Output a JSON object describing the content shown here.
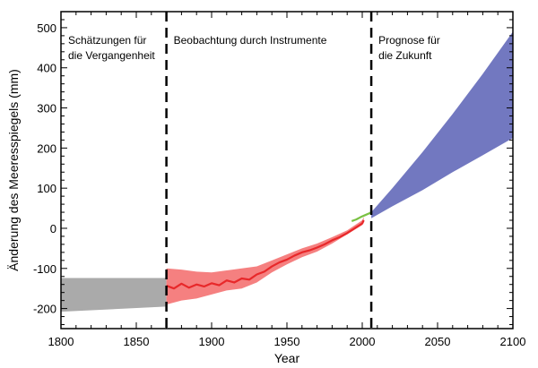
{
  "chart_data": {
    "type": "area",
    "title": "",
    "xlabel": "Year",
    "ylabel": "Änderung des Meeresspiegels (mm)",
    "xlim": [
      1800,
      2100
    ],
    "ylim": [
      -250,
      540
    ],
    "xticks": [
      1800,
      1850,
      1900,
      1950,
      2000,
      2050,
      2100
    ],
    "yticks": [
      -200,
      -100,
      0,
      100,
      200,
      300,
      400,
      500
    ],
    "grid": false,
    "legend": "none",
    "dividers": [
      1870,
      2006
    ],
    "region_labels": [
      {
        "lines": [
          "Schätzungen für",
          "die Vergangenheit"
        ]
      },
      {
        "lines": [
          "Beobachtung durch Instrumente"
        ]
      },
      {
        "lines": [
          "Prognose für",
          "die Zukunft"
        ]
      }
    ],
    "series": [
      {
        "kind": "band",
        "color": "#aaaaaa",
        "x": [
          1800,
          1870
        ],
        "upper": [
          -124,
          -124
        ],
        "lower": [
          -208,
          -195
        ]
      },
      {
        "kind": "band",
        "color": "#f58080",
        "x": [
          1870,
          1880,
          1890,
          1900,
          1910,
          1920,
          1930,
          1940,
          1950,
          1960,
          1970,
          1980,
          1990,
          2000,
          2001
        ],
        "upper": [
          -100,
          -103,
          -108,
          -110,
          -105,
          -100,
          -95,
          -80,
          -65,
          -50,
          -38,
          -22,
          -5,
          20,
          28
        ],
        "lower": [
          -190,
          -180,
          -175,
          -165,
          -155,
          -150,
          -135,
          -110,
          -90,
          -72,
          -58,
          -38,
          -15,
          8,
          15
        ]
      },
      {
        "kind": "line",
        "color": "#e8282a",
        "x": [
          1870,
          1875,
          1880,
          1885,
          1890,
          1895,
          1900,
          1905,
          1910,
          1915,
          1920,
          1925,
          1930,
          1935,
          1940,
          1945,
          1950,
          1955,
          1960,
          1965,
          1970,
          1975,
          1980,
          1985,
          1990,
          1995,
          2000,
          2001
        ],
        "y": [
          -143,
          -150,
          -138,
          -148,
          -140,
          -145,
          -137,
          -142,
          -130,
          -135,
          -125,
          -128,
          -115,
          -108,
          -95,
          -85,
          -78,
          -68,
          -60,
          -55,
          -48,
          -40,
          -30,
          -22,
          -12,
          0,
          12,
          20
        ]
      },
      {
        "kind": "line",
        "color": "#7ac143",
        "x": [
          1993,
          1996,
          1999,
          2002,
          2005,
          2006
        ],
        "y": [
          18,
          22,
          28,
          33,
          38,
          40
        ]
      },
      {
        "kind": "band",
        "color": "#7278c0",
        "x": [
          2006,
          2020,
          2040,
          2060,
          2080,
          2100
        ],
        "upper": [
          40,
          100,
          190,
          285,
          385,
          490
        ],
        "lower": [
          25,
          55,
          95,
          140,
          182,
          225
        ]
      }
    ]
  }
}
